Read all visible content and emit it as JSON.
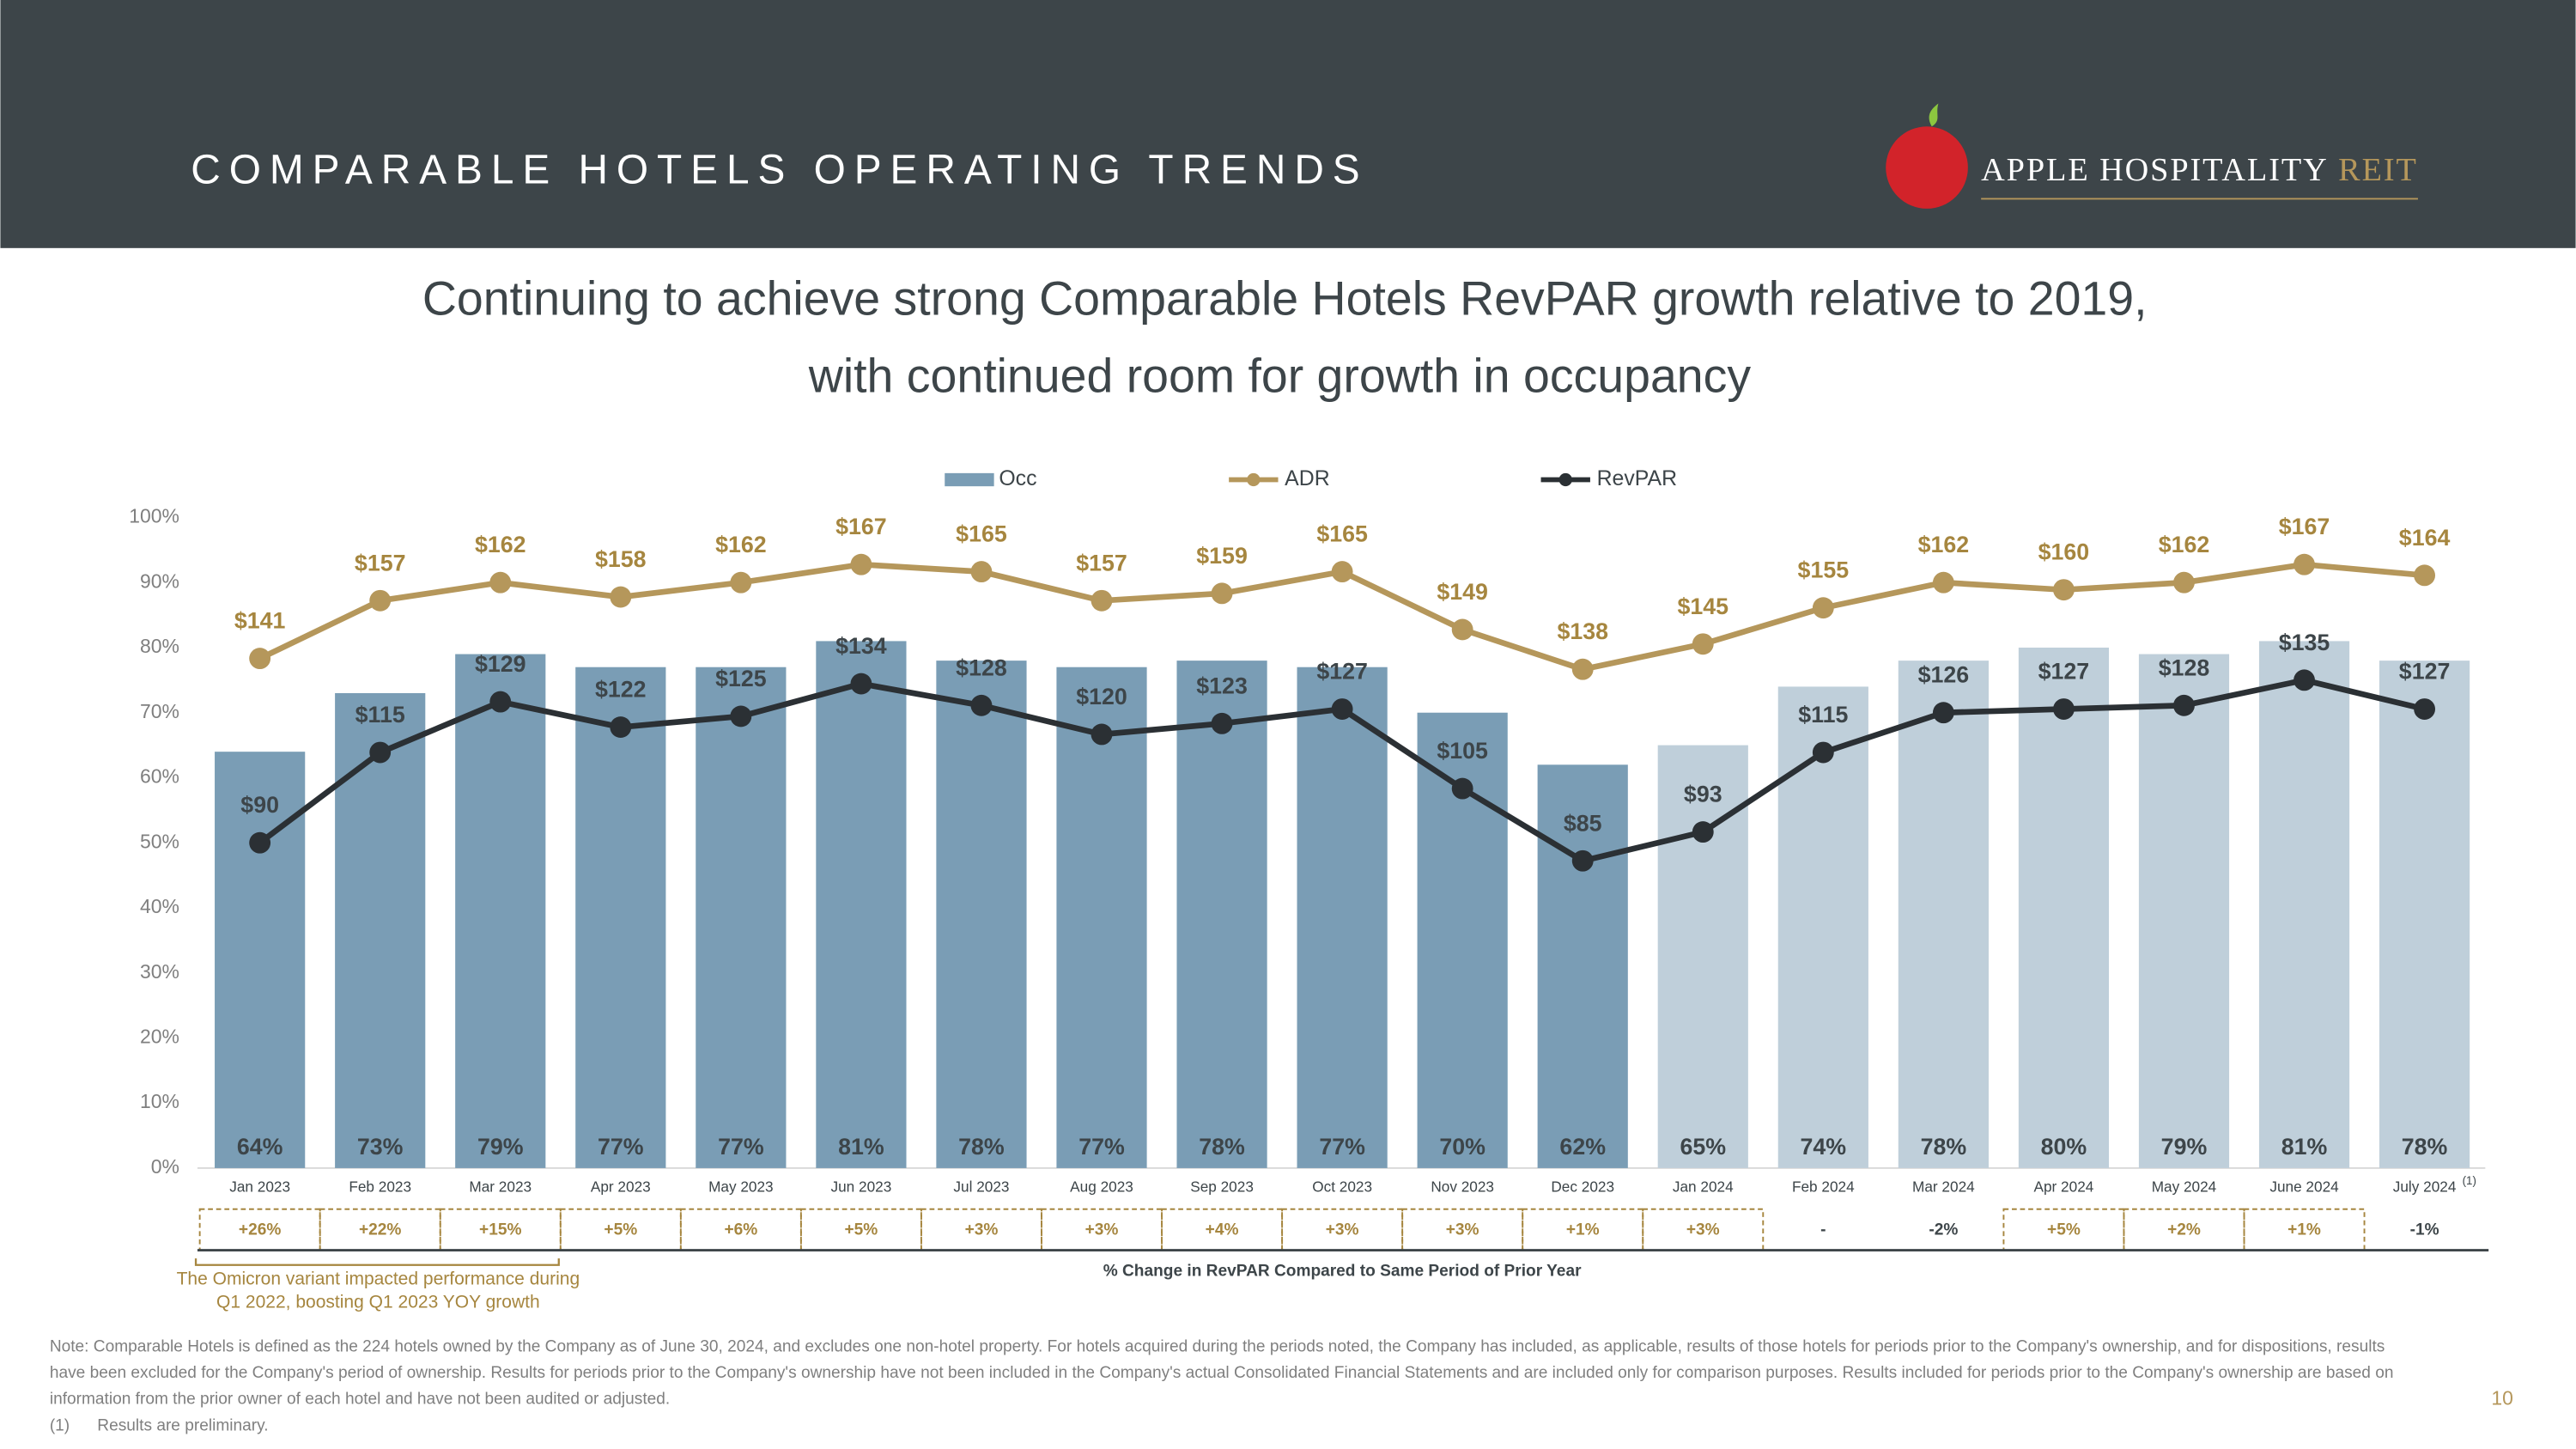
{
  "header": {
    "title": "COMPARABLE HOTELS OPERATING TRENDS",
    "logo_text": "APPLE HOSPITALITY",
    "logo_accent": "REIT"
  },
  "chart_data": {
    "type": "bar",
    "title": [
      "Continuing to achieve strong Comparable Hotels RevPAR growth relative to 2019,",
      "with continued room for growth in occupancy"
    ],
    "categories": [
      "Jan 2023",
      "Feb 2023",
      "Mar 2023",
      "Apr 2023",
      "May 2023",
      "Jun 2023",
      "Jul 2023",
      "Aug 2023",
      "Sep 2023",
      "Oct 2023",
      "Nov 2023",
      "Dec 2023",
      "Jan 2024",
      "Feb 2024",
      "Mar 2024",
      "Apr 2024",
      "May 2024",
      "June 2024",
      "July 2024"
    ],
    "category_note": "(1)",
    "ylim": [
      0,
      100
    ],
    "yticks": [
      {
        "value": 0,
        "label": "0%"
      },
      {
        "value": 10,
        "label": "10%"
      },
      {
        "value": 20,
        "label": "20%"
      },
      {
        "value": 30,
        "label": "30%"
      },
      {
        "value": 40,
        "label": "40%"
      },
      {
        "value": 50,
        "label": "50%"
      },
      {
        "value": 60,
        "label": "60%"
      },
      {
        "value": 70,
        "label": "70%"
      },
      {
        "value": 80,
        "label": "80%"
      },
      {
        "value": 90,
        "label": "90%"
      },
      {
        "value": 100,
        "label": "100%"
      }
    ],
    "y2lim": [
      0,
      180
    ],
    "grid": false,
    "legend": "top",
    "series": [
      {
        "name": "Occ",
        "type": "bar",
        "color": "#7a9db5",
        "colors": [
          "#7a9db5",
          "#7a9db5",
          "#7a9db5",
          "#7a9db5",
          "#7a9db5",
          "#7a9db5",
          "#7a9db5",
          "#7a9db5",
          "#7a9db5",
          "#7a9db5",
          "#7a9db5",
          "#7a9db5",
          "#bfcfda",
          "#bfcfda",
          "#bfcfda",
          "#bfcfda",
          "#bfcfda",
          "#bfcfda",
          "#bfcfda"
        ],
        "values": [
          64,
          73,
          79,
          77,
          77,
          81,
          78,
          77,
          78,
          77,
          70,
          62,
          65,
          74,
          78,
          80,
          79,
          81,
          78
        ],
        "value_labels": [
          "64%",
          "73%",
          "79%",
          "77%",
          "77%",
          "81%",
          "78%",
          "77%",
          "78%",
          "77%",
          "70%",
          "62%",
          "65%",
          "74%",
          "78%",
          "80%",
          "79%",
          "81%",
          "78%"
        ]
      },
      {
        "name": "ADR",
        "type": "line",
        "axis": "y2",
        "color": "#b5975b",
        "values": [
          141,
          157,
          162,
          158,
          162,
          167,
          165,
          157,
          159,
          165,
          149,
          138,
          145,
          155,
          162,
          160,
          162,
          167,
          164
        ],
        "value_labels": [
          "$141",
          "$157",
          "$162",
          "$158",
          "$162",
          "$167",
          "$165",
          "$157",
          "$159",
          "$165",
          "$149",
          "$138",
          "$145",
          "$155",
          "$162",
          "$160",
          "$162",
          "$167",
          "$164"
        ]
      },
      {
        "name": "RevPAR",
        "type": "line",
        "axis": "y2",
        "color": "#2b3034",
        "values": [
          90,
          115,
          129,
          122,
          125,
          134,
          128,
          120,
          123,
          127,
          105,
          85,
          93,
          115,
          126,
          127,
          128,
          135,
          127
        ],
        "value_labels": [
          "$90",
          "$115",
          "$129",
          "$122",
          "$125",
          "$134",
          "$128",
          "$120",
          "$123",
          "$127",
          "$105",
          "$85",
          "$93",
          "$115",
          "$126",
          "$127",
          "$128",
          "$135",
          "$127"
        ]
      }
    ],
    "change": {
      "title": "% Change in RevPAR Compared to Same Period of Prior Year",
      "values": [
        26,
        22,
        15,
        5,
        6,
        5,
        3,
        3,
        4,
        3,
        3,
        1,
        3,
        null,
        -2,
        5,
        2,
        1,
        -1
      ],
      "value_labels": [
        "+26%",
        "+22%",
        "+15%",
        "+5%",
        "+6%",
        "+5%",
        "+3%",
        "+3%",
        "+4%",
        "+3%",
        "+3%",
        "+1%",
        "+3%",
        "-",
        "-2%",
        "+5%",
        "+2%",
        "+1%",
        "-1%"
      ]
    },
    "annotation": [
      "The Omicron variant impacted performance during",
      "Q1 2022, boosting Q1 2023 YOY growth"
    ]
  },
  "notes": [
    "Note: Comparable Hotels is defined as the 224 hotels owned by the Company as of June 30, 2024, and excludes one non-hotel property. For hotels acquired during the periods noted, the Company has included, as applicable, results of those hotels for periods prior to the Company's ownership, and for dispositions, results",
    "have been excluded for the Company's period of ownership. Results for periods prior to the Company's ownership have not been included in the Company's actual Consolidated Financial Statements and are included only for comparison purposes. Results included for periods prior to the Company's ownership are based on",
    "information from the prior owner of each hotel and have not been audited or adjusted."
  ],
  "footnote": {
    "marker": "(1)",
    "text": "Results are preliminary."
  },
  "page_number": "10"
}
